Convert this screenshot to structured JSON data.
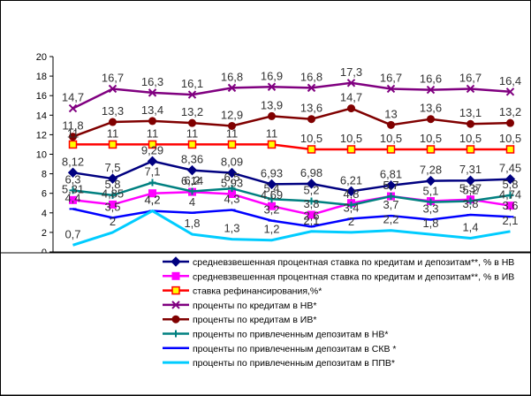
{
  "chart_data": {
    "type": "line",
    "categories": [
      "",
      "",
      "",
      "",
      "",
      "",
      "",
      "",
      "",
      "",
      "",
      ""
    ],
    "ylim": [
      0,
      20
    ],
    "yticks": [
      "0",
      "2",
      "4",
      "6",
      "8",
      "10",
      "12",
      "14",
      "16",
      "18",
      "20"
    ],
    "grid": false,
    "legend_position": "bottom",
    "series": [
      {
        "name": "средневзвешенная процентная ставка по кредитам и депозитам**, % в НВ",
        "color": "#000080",
        "marker": "diamond",
        "values": [
          8.12,
          7.5,
          9.29,
          8.36,
          8.09,
          6.93,
          6.98,
          6.21,
          6.81,
          7.28,
          7.31,
          7.45
        ],
        "labels": [
          "8,12",
          "7,5",
          "9,29",
          "8,36",
          "8,09",
          "6,93",
          "6,98",
          "6,21",
          "6,81",
          "7,28",
          "7,31",
          "7,45"
        ]
      },
      {
        "name": "средневзвешенная процентная ставка по кредитам и депозитам**, % в ИВ",
        "color": "#FF00FF",
        "marker": "square",
        "values": [
          5.31,
          4.85,
          6.0,
          6.14,
          5.93,
          4.69,
          3.8,
          5.0,
          5.7,
          5.2,
          5.37,
          4.74
        ],
        "labels": [
          "5,31",
          "4,85",
          "",
          "6,14",
          "5,93",
          "4,69",
          "3,8",
          "",
          "5,7",
          "",
          "5,37",
          "4,74"
        ]
      },
      {
        "name": "ставка рефинансирования,%*",
        "color": "#FF0000",
        "marker": "square-open-yellow",
        "values": [
          11,
          11,
          11,
          11,
          11,
          11,
          10.5,
          10.5,
          10.5,
          10.5,
          10.5,
          10.5
        ],
        "labels": [
          "11",
          "11",
          "11",
          "11",
          "11",
          "11",
          "10,5",
          "10,5",
          "10,5",
          "10,5",
          "10,5",
          "10,5"
        ]
      },
      {
        "name": "проценты по кредитам в НВ*",
        "color": "#800080",
        "marker": "x",
        "values": [
          14.7,
          16.7,
          16.3,
          16.1,
          16.8,
          16.9,
          16.8,
          17.3,
          16.7,
          16.6,
          16.7,
          16.4
        ],
        "labels": [
          "14,7",
          "16,7",
          "16,3",
          "16,1",
          "16,8",
          "16,9",
          "16,8",
          "17,3",
          "16,7",
          "16,6",
          "16,7",
          "16,4"
        ]
      },
      {
        "name": "проценты по кредитам в ИВ*",
        "color": "#800000",
        "marker": "circle",
        "values": [
          11.8,
          13.3,
          13.4,
          13.2,
          12.9,
          13.9,
          13.6,
          14.7,
          13.0,
          13.6,
          13.1,
          13.2
        ],
        "labels": [
          "11,8",
          "13,3",
          "13,4",
          "13,2",
          "12,9",
          "13,9",
          "13,6",
          "14,7",
          "13",
          "13,6",
          "13,1",
          "13,2"
        ]
      },
      {
        "name": "проценты по привлеченным депозитам в НВ*",
        "color": "#008080",
        "marker": "plus",
        "values": [
          6.3,
          5.8,
          7.1,
          6.2,
          6.5,
          5.4,
          5.2,
          4.8,
          5.7,
          5.1,
          5.2,
          5.8
        ],
        "labels": [
          "6,3",
          "5,8",
          "7,1",
          "6,2",
          "6,5",
          "5,4",
          "5,2",
          "4,8",
          "5,7",
          "5,1",
          "5,2",
          "5,8"
        ]
      },
      {
        "name": "проценты по привлеченным депозитам в СКВ *",
        "color": "#0000FF",
        "marker": "bar",
        "values": [
          4.4,
          3.5,
          4.2,
          4.0,
          4.3,
          3.2,
          2.6,
          3.4,
          3.7,
          3.3,
          3.8,
          3.6
        ],
        "labels": [
          "4,4",
          "3,5",
          "4,2",
          "4",
          "4,3",
          "3,2",
          "2,6",
          "3,4",
          "3,7",
          "3,3",
          "3,8",
          "3,6"
        ]
      },
      {
        "name": "проценты по привлеченным депозитам в ППВ*",
        "color": "#00CCFF",
        "marker": "none",
        "values": [
          0.7,
          2.0,
          4.2,
          1.8,
          1.3,
          1.2,
          2.1,
          2.0,
          2.2,
          1.8,
          1.4,
          2.1
        ],
        "labels": [
          "0,7",
          "2",
          "4,2",
          "1,8",
          "1,3",
          "1,2",
          "2,1",
          "2",
          "2,2",
          "1,8",
          "1,4",
          "2,1"
        ]
      }
    ]
  }
}
